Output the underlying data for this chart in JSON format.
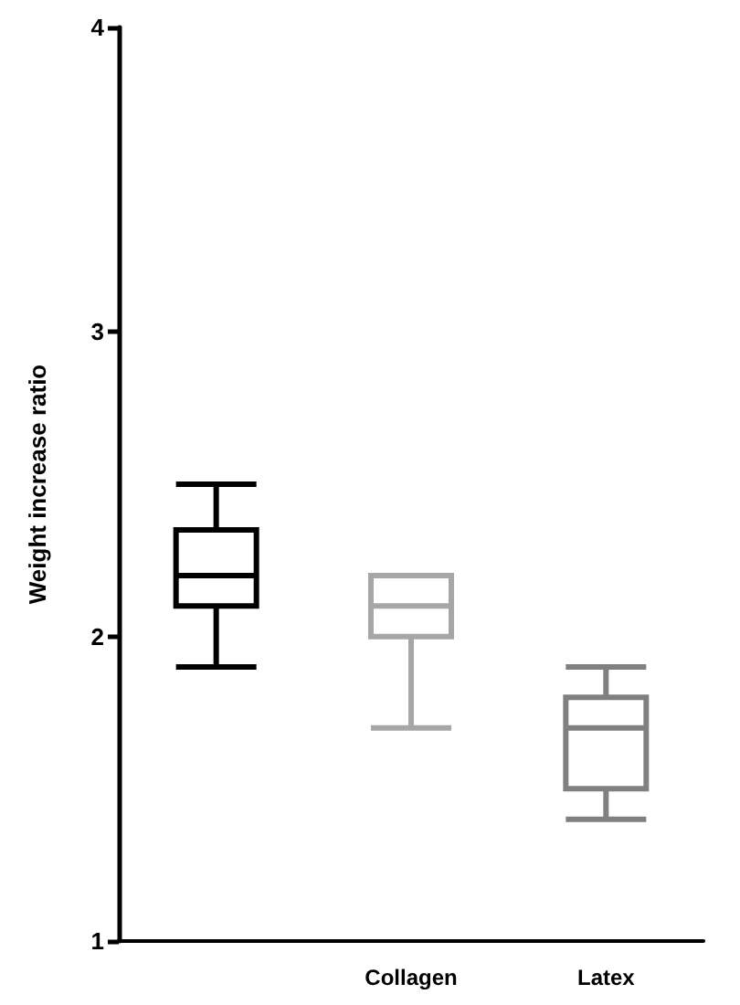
{
  "chart_data": {
    "type": "box",
    "ylabel": "Weight increase ratio",
    "categories": [
      null,
      "Collagen",
      "Latex"
    ],
    "boxes": [
      {
        "low": 1.9,
        "q1": 2.1,
        "median": 2.2,
        "q3": 2.35,
        "high": 2.5
      },
      {
        "low": 1.7,
        "q1": 2.0,
        "median": 2.1,
        "q3": 2.2,
        "high": 2.2
      },
      {
        "low": 1.4,
        "q1": 1.5,
        "median": 1.7,
        "q3": 1.8,
        "high": 1.9
      }
    ],
    "colors": [
      "#000000",
      "#a6a6a6",
      "#808080"
    ],
    "ylim": [
      1,
      4
    ],
    "yticks": [
      1,
      2,
      3,
      4
    ],
    "grid": false
  }
}
